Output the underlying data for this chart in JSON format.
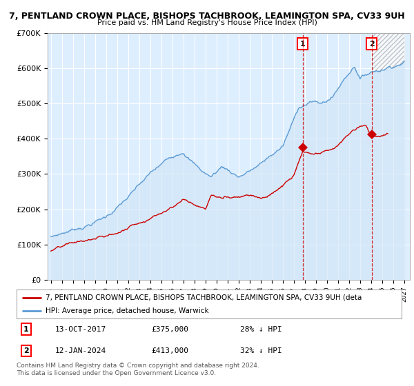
{
  "title": "7, PENTLAND CROWN PLACE, BISHOPS TACHBROOK, LEAMINGTON SPA, CV33 9UH",
  "subtitle": "Price paid vs. HM Land Registry's House Price Index (HPI)",
  "ylabel_ticks": [
    "£0",
    "£100K",
    "£200K",
    "£300K",
    "£400K",
    "£500K",
    "£600K",
    "£700K"
  ],
  "ytick_vals": [
    0,
    100000,
    200000,
    300000,
    400000,
    500000,
    600000,
    700000
  ],
  "ylim": [
    0,
    700000
  ],
  "xlim_start": 1994.7,
  "xlim_end": 2027.5,
  "hpi_color": "#5b9bd5",
  "hpi_fill_color": "#d0e4f5",
  "price_color": "#cc0000",
  "transaction1_date": "13-OCT-2017",
  "transaction1_price": 375000,
  "transaction1_pct": "28% ↓ HPI",
  "transaction1_x": 2017.79,
  "transaction2_date": "12-JAN-2024",
  "transaction2_price": 413000,
  "transaction2_pct": "32% ↓ HPI",
  "transaction2_x": 2024.04,
  "legend_label_red": "7, PENTLAND CROWN PLACE, BISHOPS TACHBROOK, LEAMINGTON SPA, CV33 9UH (deta",
  "legend_label_blue": "HPI: Average price, detached house, Warwick",
  "footnote": "Contains HM Land Registry data © Crown copyright and database right 2024.\nThis data is licensed under the Open Government Licence v3.0.",
  "plot_bg_color": "#ddeeff",
  "fig_bg_color": "#ffffff"
}
